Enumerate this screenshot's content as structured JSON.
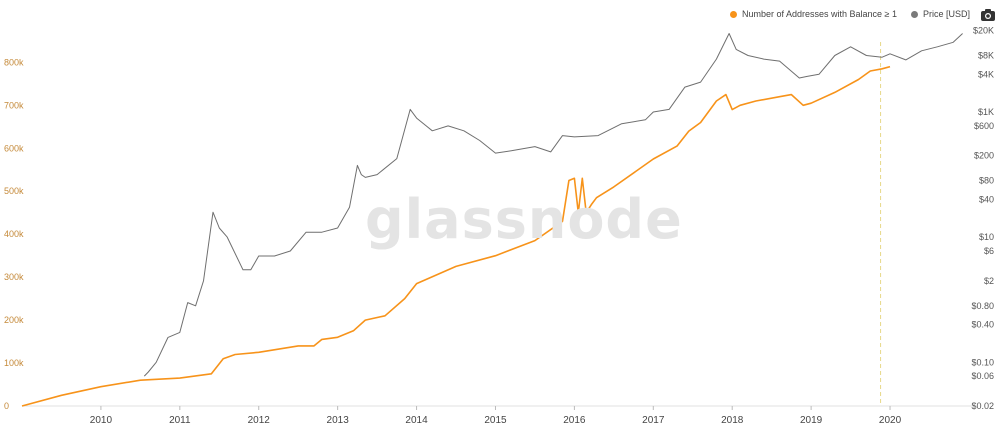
{
  "watermark": "glassnode",
  "legend": [
    {
      "label": "Number of Addresses with Balance ≥ 1",
      "color": "#f7931a"
    },
    {
      "label": "Price [USD]",
      "color": "#7a7a7a"
    }
  ],
  "icons": {
    "camera": "camera-icon"
  },
  "colors": {
    "addresses": "#f7931a",
    "price": "#6f6f6f",
    "left_axis_text": "#c58a3a",
    "right_axis_text": "#555555",
    "marker": "#e6d98a"
  },
  "chart_data": {
    "type": "line",
    "x_range": [
      2009.0,
      2020.95
    ],
    "x_ticks": [
      "2010",
      "2011",
      "2012",
      "2013",
      "2014",
      "2015",
      "2016",
      "2017",
      "2018",
      "2019",
      "2020"
    ],
    "grid": false,
    "legend_position": "top-right",
    "highlight_x": 2019.88,
    "left_axis": {
      "ylim": [
        0,
        880000
      ],
      "ticks": [
        0,
        100000,
        200000,
        300000,
        400000,
        500000,
        600000,
        700000,
        800000
      ],
      "tick_labels": [
        "0",
        "100k",
        "200k",
        "300k",
        "400k",
        "500k",
        "600k",
        "700k",
        "800k"
      ]
    },
    "right_axis": {
      "scale": "log",
      "ylim": [
        0.02,
        22000
      ],
      "ticks": [
        0.02,
        0.06,
        0.1,
        0.4,
        0.8,
        2,
        6,
        10,
        40,
        80,
        200,
        600,
        1000,
        4000,
        8000,
        20000
      ],
      "tick_labels": [
        "$0.02",
        "$0.06",
        "$0.10",
        "$0.40",
        "$0.80",
        "$2",
        "$6",
        "$10",
        "$40",
        "$80",
        "$200",
        "$600",
        "$1K",
        "$4K",
        "$8K",
        "$20K"
      ]
    },
    "series": [
      {
        "name": "Number of Addresses with Balance ≥ 1",
        "axis": "left",
        "x": [
          2009.0,
          2009.5,
          2010.0,
          2010.5,
          2011.0,
          2011.4,
          2011.55,
          2011.7,
          2012.0,
          2012.5,
          2012.7,
          2012.8,
          2013.0,
          2013.2,
          2013.35,
          2013.6,
          2013.85,
          2014.0,
          2014.5,
          2015.0,
          2015.5,
          2015.85,
          2015.93,
          2016.0,
          2016.05,
          2016.1,
          2016.15,
          2016.22,
          2016.28,
          2016.5,
          2017.0,
          2017.3,
          2017.45,
          2017.6,
          2017.8,
          2017.92,
          2018.0,
          2018.1,
          2018.3,
          2018.6,
          2018.75,
          2018.9,
          2019.0,
          2019.3,
          2019.6,
          2019.75,
          2019.9,
          2020.0
        ],
        "values": [
          0,
          25000,
          45000,
          60000,
          65000,
          75000,
          110000,
          120000,
          125000,
          140000,
          140000,
          155000,
          160000,
          175000,
          200000,
          210000,
          250000,
          285000,
          325000,
          350000,
          385000,
          430000,
          525000,
          530000,
          450000,
          530000,
          450000,
          470000,
          485000,
          510000,
          575000,
          605000,
          640000,
          660000,
          710000,
          725000,
          690000,
          700000,
          710000,
          720000,
          725000,
          700000,
          705000,
          730000,
          760000,
          780000,
          785000,
          790000
        ]
      },
      {
        "name": "Price [USD]",
        "axis": "right",
        "x": [
          2010.55,
          2010.6,
          2010.7,
          2010.85,
          2011.0,
          2011.1,
          2011.2,
          2011.3,
          2011.42,
          2011.5,
          2011.6,
          2011.8,
          2011.9,
          2012.0,
          2012.2,
          2012.4,
          2012.6,
          2012.8,
          2013.0,
          2013.15,
          2013.25,
          2013.3,
          2013.35,
          2013.5,
          2013.75,
          2013.92,
          2014.0,
          2014.2,
          2014.4,
          2014.6,
          2014.8,
          2015.0,
          2015.2,
          2015.5,
          2015.7,
          2015.85,
          2016.0,
          2016.3,
          2016.6,
          2016.9,
          2017.0,
          2017.2,
          2017.4,
          2017.6,
          2017.8,
          2017.96,
          2018.05,
          2018.2,
          2018.4,
          2018.6,
          2018.85,
          2018.95,
          2019.1,
          2019.3,
          2019.5,
          2019.7,
          2019.9,
          2020.0,
          2020.2,
          2020.4,
          2020.6,
          2020.8,
          2020.92
        ],
        "values": [
          0.06,
          0.07,
          0.1,
          0.25,
          0.3,
          0.9,
          0.8,
          2,
          25,
          14,
          10,
          3,
          3,
          5,
          5,
          6,
          12,
          12,
          14,
          30,
          140,
          100,
          90,
          100,
          180,
          1100,
          800,
          500,
          600,
          500,
          350,
          220,
          240,
          280,
          230,
          420,
          400,
          420,
          650,
          750,
          1000,
          1100,
          2500,
          3000,
          7000,
          18000,
          10000,
          8000,
          7000,
          6500,
          3500,
          3700,
          4000,
          8000,
          11000,
          8000,
          7500,
          8500,
          6800,
          9500,
          11000,
          13000,
          18000
        ]
      }
    ]
  }
}
